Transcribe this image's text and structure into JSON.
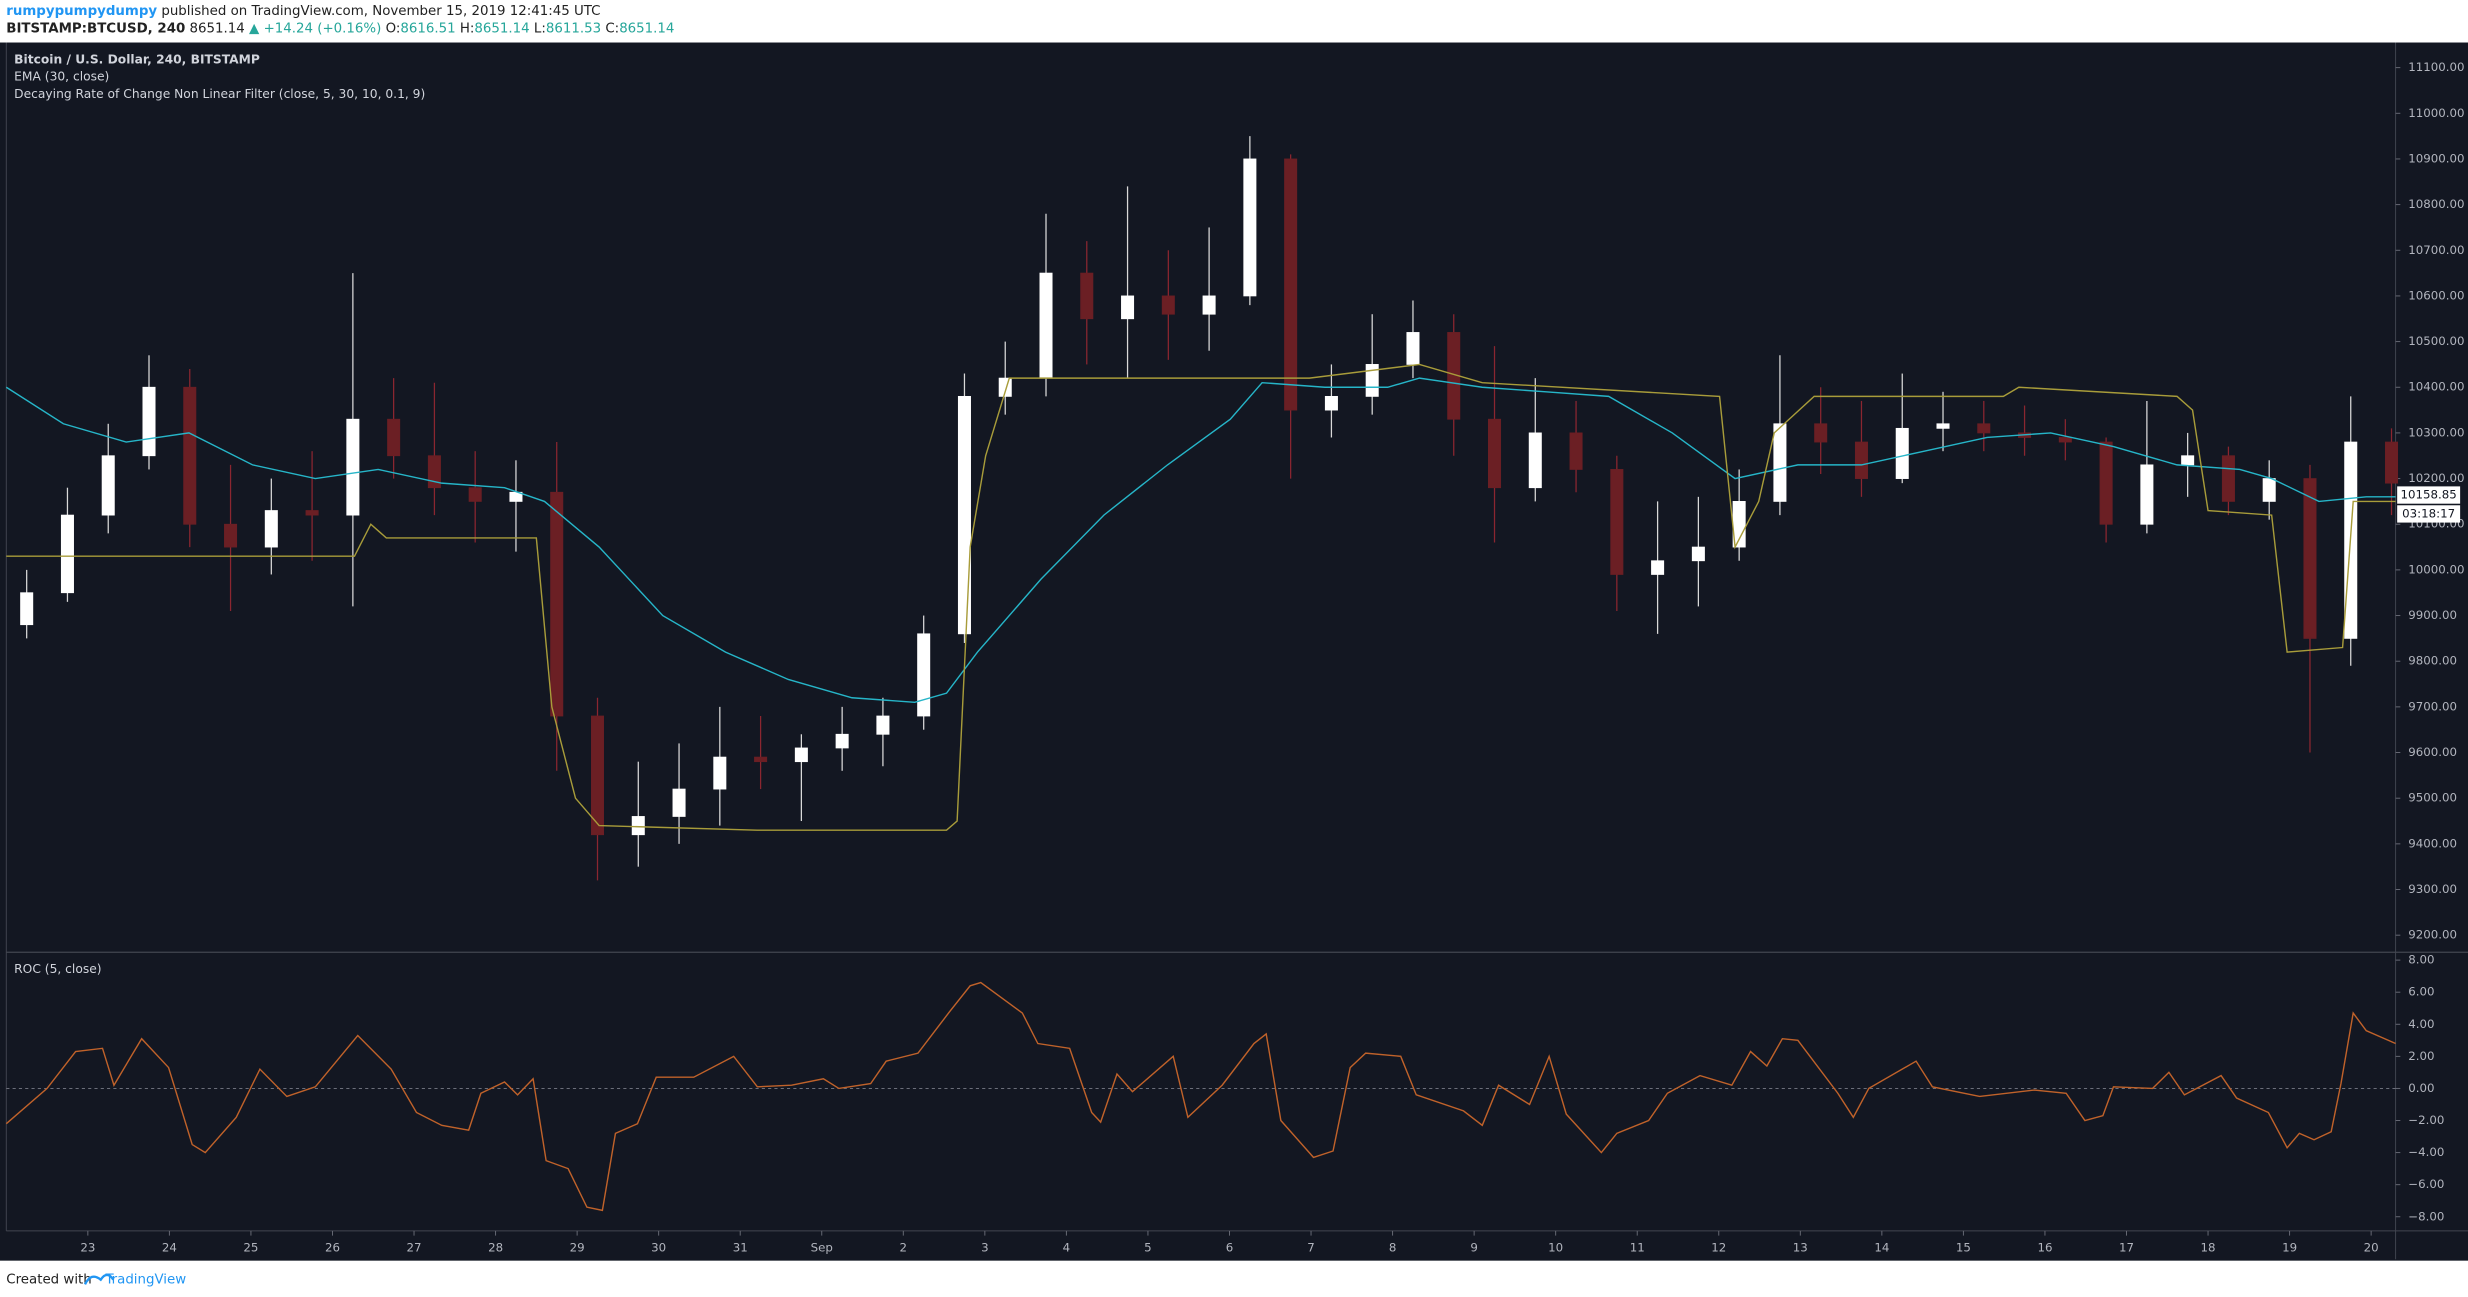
{
  "header": {
    "author": "rumpypumpydumpy",
    "published": "published on TradingView.com, November 15, 2019 12:41:45 UTC",
    "symbol": "BITSTAMP:BTCUSD, 240",
    "price": "8651.14",
    "change": "▲ +14.24 (+0.16%)",
    "o_label": "O:",
    "o": "8616.51",
    "h_label": "H:",
    "h": "8651.14",
    "l_label": "L:",
    "l": "8611.53",
    "c_label": "C:",
    "c": "8651.14"
  },
  "footer": {
    "created": "Created with",
    "brand": "TradingView"
  },
  "chart_data": [
    {
      "type": "candlestick",
      "title": "Bitcoin / U.S. Dollar, 240, BITSTAMP",
      "x": [
        0.25,
        0.75,
        1.25,
        1.75,
        2.25,
        2.75,
        3.25,
        3.75,
        4.25,
        4.75,
        5.25,
        5.75,
        6.25,
        6.75,
        7.25,
        7.75,
        8.25,
        8.75,
        9.25,
        9.75,
        10.25,
        10.75,
        11.25,
        11.75,
        12.25,
        12.75,
        13.25,
        13.75,
        14.25,
        14.75,
        15.25,
        15.75,
        16.25,
        16.75,
        17.25,
        17.75,
        18.25,
        18.75,
        19.25,
        19.75,
        20.25,
        20.75,
        21.25,
        21.75,
        22.25,
        22.75,
        23.25,
        23.75,
        24.25,
        24.75,
        25.25,
        25.75,
        26.25,
        26.75,
        27.25,
        27.75,
        28.25,
        28.75,
        29.25
      ],
      "open": [
        9880,
        9950,
        10120,
        10250,
        10400,
        10100,
        10050,
        10130,
        10120,
        10330,
        10250,
        10180,
        10150,
        10170,
        9680,
        9420,
        9460,
        9520,
        9590,
        9580,
        9610,
        9640,
        9680,
        9860,
        10380,
        10420,
        10650,
        10550,
        10600,
        10560,
        10600,
        10900,
        10350,
        10380,
        10450,
        10520,
        10330,
        10180,
        10300,
        10220,
        9990,
        10020,
        10050,
        10150,
        10320,
        10280,
        10200,
        10310,
        10320,
        10300,
        10290,
        10280,
        10100,
        10230,
        10250,
        10150,
        10200,
        9850,
        10280
      ],
      "high": [
        10000,
        10180,
        10320,
        10470,
        10440,
        10230,
        10200,
        10260,
        10650,
        10420,
        10410,
        10260,
        10240,
        10280,
        9720,
        9580,
        9620,
        9700,
        9680,
        9640,
        9700,
        9720,
        9900,
        10430,
        10500,
        10780,
        10720,
        10840,
        10700,
        10750,
        10950,
        10910,
        10450,
        10560,
        10590,
        10560,
        10490,
        10420,
        10370,
        10250,
        10150,
        10160,
        10220,
        10470,
        10400,
        10370,
        10430,
        10390,
        10370,
        10360,
        10330,
        10290,
        10370,
        10300,
        10270,
        10240,
        10230,
        10380,
        10310
      ],
      "low": [
        9850,
        9930,
        10080,
        10220,
        10050,
        9910,
        9990,
        10020,
        9920,
        10200,
        10120,
        10060,
        10040,
        9560,
        9320,
        9350,
        9400,
        9440,
        9520,
        9450,
        9560,
        9570,
        9650,
        9840,
        10340,
        10380,
        10450,
        10420,
        10460,
        10480,
        10580,
        10200,
        10290,
        10340,
        10420,
        10250,
        10060,
        10150,
        10170,
        9910,
        9860,
        9920,
        10020,
        10120,
        10210,
        10160,
        10190,
        10260,
        10260,
        10250,
        10240,
        10060,
        10080,
        10160,
        10120,
        10110,
        9600,
        9790,
        10120
      ],
      "close": [
        9950,
        10120,
        10250,
        10400,
        10100,
        10050,
        10130,
        10120,
        10330,
        10250,
        10180,
        10150,
        10170,
        9680,
        9420,
        9460,
        9520,
        9590,
        9580,
        9610,
        9640,
        9680,
        9860,
        10380,
        10420,
        10650,
        10550,
        10600,
        10560,
        10600,
        10900,
        10350,
        10380,
        10450,
        10520,
        10330,
        10180,
        10300,
        10220,
        9990,
        10020,
        10050,
        10150,
        10320,
        10280,
        10200,
        10310,
        10320,
        10300,
        10290,
        10280,
        10100,
        10230,
        10250,
        10150,
        10200,
        9850,
        10280,
        10190
      ],
      "up_color": "#ffffff",
      "down_color": "#6b1f24",
      "series": [
        {
          "name": "EMA (30, close)",
          "color": "#26b5c8",
          "x": [
            0,
            0.7,
            1.47,
            2.24,
            3.02,
            3.79,
            4.56,
            5.34,
            6.11,
            6.6,
            7.27,
            8.05,
            8.82,
            9.59,
            10.37,
            11.14,
            11.53,
            11.91,
            12.69,
            13.46,
            14.24,
            15.01,
            15.4,
            16.17,
            16.94,
            17.33,
            18.1,
            18.88,
            19.65,
            20.43,
            21.2,
            21.97,
            22.75,
            23.52,
            24.29,
            25.07,
            25.84,
            26.62,
            27.39,
            27.78,
            28.36,
            28.94,
            29.3
          ],
          "values": [
            10400,
            10320,
            10280,
            10300,
            10230,
            10200,
            10220,
            10190,
            10180,
            10150,
            10050,
            9900,
            9820,
            9760,
            9720,
            9710,
            9730,
            9820,
            9980,
            10120,
            10230,
            10330,
            10410,
            10400,
            10400,
            10420,
            10400,
            10390,
            10380,
            10300,
            10200,
            10230,
            10230,
            10260,
            10290,
            10300,
            10270,
            10230,
            10220,
            10200,
            10150,
            10160,
            10160
          ]
        },
        {
          "name": "Decaying Rate of Change Non Linear Filter (close, 5, 30, 10, 0.1, 9)",
          "color": "#a89c3a",
          "x": [
            0,
            4.27,
            4.47,
            4.66,
            6.5,
            6.69,
            6.98,
            7.27,
            9.21,
            11.53,
            11.66,
            11.82,
            12.01,
            12.3,
            15.4,
            15.98,
            17.33,
            18.1,
            21.01,
            21.2,
            21.49,
            21.68,
            22.17,
            24.49,
            24.68,
            26.62,
            26.81,
            27.0,
            27.78,
            27.97,
            28.65,
            28.78,
            29.3
          ],
          "values": [
            10030,
            10030,
            10100,
            10070,
            10070,
            9700,
            9500,
            9440,
            9430,
            9430,
            9450,
            10050,
            10250,
            10420,
            10420,
            10420,
            10450,
            10410,
            10380,
            10050,
            10150,
            10300,
            10380,
            10380,
            10400,
            10380,
            10350,
            10130,
            10120,
            9820,
            9830,
            10150,
            10150
          ]
        }
      ],
      "xlim": [
        0,
        29.3
      ],
      "ylim": [
        9166,
        11155
      ],
      "yticks": [
        {
          "value": 9200,
          "label": "9200.00"
        },
        {
          "value": 9300,
          "label": "9300.00"
        },
        {
          "value": 9400,
          "label": "9400.00"
        },
        {
          "value": 9500,
          "label": "9500.00"
        },
        {
          "value": 9600,
          "label": "9600.00"
        },
        {
          "value": 9700,
          "label": "9700.00"
        },
        {
          "value": 9800,
          "label": "9800.00"
        },
        {
          "value": 9900,
          "label": "9900.00"
        },
        {
          "value": 10000,
          "label": "10000.00"
        },
        {
          "value": 10100,
          "label": "10100.00"
        },
        {
          "value": 10200,
          "label": "10200.00"
        },
        {
          "value": 10300,
          "label": "10300.00"
        },
        {
          "value": 10400,
          "label": "10400.00"
        },
        {
          "value": 10500,
          "label": "10500.00"
        },
        {
          "value": 10600,
          "label": "10600.00"
        },
        {
          "value": 10700,
          "label": "10700.00"
        },
        {
          "value": 10800,
          "label": "10800.00"
        },
        {
          "value": 10900,
          "label": "10900.00"
        },
        {
          "value": 11000,
          "label": "11000.00"
        },
        {
          "value": 11100,
          "label": "11100.00"
        }
      ],
      "last_price_label": "10158.85",
      "countdown": "03:18:17"
    },
    {
      "type": "line",
      "title": "ROC (5, close)",
      "series": [
        {
          "color": "#c0622a",
          "x": [
            0,
            0.5,
            0.85,
            1.18,
            1.32,
            1.66,
            1.99,
            2.28,
            2.44,
            2.82,
            3.11,
            3.44,
            3.79,
            4.31,
            4.72,
            5.03,
            5.34,
            5.67,
            5.82,
            6.11,
            6.27,
            6.46,
            6.62,
            6.89,
            7.12,
            7.31,
            7.47,
            7.74,
            7.97,
            8.43,
            8.92,
            9.21,
            9.63,
            10.02,
            10.21,
            10.6,
            10.79,
            11.18,
            11.57,
            11.82,
            11.95,
            12.46,
            12.65,
            13.04,
            13.31,
            13.42,
            13.62,
            13.81,
            14.31,
            14.49,
            14.91,
            15.3,
            15.45,
            15.63,
            16.03,
            16.27,
            16.48,
            16.67,
            17.1,
            17.29,
            17.87,
            18.1,
            18.3,
            18.68,
            18.92,
            19.13,
            19.56,
            19.75,
            20.14,
            20.37,
            20.77,
            21.16,
            21.39,
            21.59,
            21.78,
            21.97,
            22.46,
            22.65,
            22.84,
            23.42,
            23.62,
            24.2,
            24.87,
            25.26,
            25.49,
            25.71,
            25.84,
            26.32,
            26.52,
            26.71,
            27.16,
            27.35,
            27.74,
            27.97,
            28.12,
            28.3,
            28.51,
            28.63,
            28.78,
            28.94,
            29.3
          ],
          "values": [
            -2.2,
            0,
            2.3,
            2.5,
            0.2,
            3.1,
            1.3,
            -3.5,
            -4.0,
            -1.8,
            1.2,
            -0.5,
            0.1,
            3.3,
            1.2,
            -1.5,
            -2.3,
            -2.6,
            -0.3,
            0.4,
            -0.4,
            0.6,
            -4.5,
            -5,
            -7.4,
            -7.6,
            -2.8,
            -2.2,
            0.7,
            0.7,
            2.0,
            0.1,
            0.2,
            0.6,
            0,
            0.3,
            1.7,
            2.2,
            4.8,
            6.4,
            6.6,
            4.7,
            2.8,
            2.5,
            -1.5,
            -2.1,
            0.9,
            -0.2,
            2.0,
            -1.8,
            0.2,
            2.8,
            3.4,
            -2,
            -4.3,
            -3.9,
            1.3,
            2.2,
            2.0,
            -0.4,
            -1.4,
            -2.3,
            0.2,
            -1.0,
            2.0,
            -1.6,
            -4.0,
            -2.8,
            -2.0,
            -0.3,
            0.8,
            0.2,
            2.3,
            1.4,
            3.1,
            3.0,
            -0.3,
            -1.8,
            0,
            1.7,
            0.1,
            -0.5,
            -0.1,
            -0.3,
            -2.0,
            -1.7,
            0.1,
            0,
            1.0,
            -0.4,
            0.8,
            -0.6,
            -1.5,
            -3.7,
            -2.8,
            -3.2,
            -2.7,
            0.3,
            4.7,
            3.6,
            2.8
          ]
        }
      ],
      "hline": 0,
      "xlim": [
        0,
        29.3
      ],
      "ylim": [
        -8.88,
        8.39
      ],
      "yticks": [
        {
          "value": -8,
          "label": "−8.00"
        },
        {
          "value": -6,
          "label": "−6.00"
        },
        {
          "value": -4,
          "label": "−4.00"
        },
        {
          "value": -2,
          "label": "−2.00"
        },
        {
          "value": 0,
          "label": "0.00"
        },
        {
          "value": 2,
          "label": "2.00"
        },
        {
          "value": 4,
          "label": "4.00"
        },
        {
          "value": 6,
          "label": "6.00"
        },
        {
          "value": 8,
          "label": "8.00"
        }
      ],
      "xticks": [
        {
          "value": 1,
          "label": "23"
        },
        {
          "value": 2,
          "label": "24"
        },
        {
          "value": 3,
          "label": "25"
        },
        {
          "value": 4,
          "label": "26"
        },
        {
          "value": 5,
          "label": "27"
        },
        {
          "value": 6,
          "label": "28"
        },
        {
          "value": 7,
          "label": "29"
        },
        {
          "value": 8,
          "label": "30"
        },
        {
          "value": 9,
          "label": "31"
        },
        {
          "value": 10,
          "label": "Sep"
        },
        {
          "value": 11,
          "label": "2"
        },
        {
          "value": 12,
          "label": "3"
        },
        {
          "value": 13,
          "label": "4"
        },
        {
          "value": 14,
          "label": "5"
        },
        {
          "value": 15,
          "label": "6"
        },
        {
          "value": 16,
          "label": "7"
        },
        {
          "value": 17,
          "label": "8"
        },
        {
          "value": 18,
          "label": "9"
        },
        {
          "value": 19,
          "label": "10"
        },
        {
          "value": 20,
          "label": "11"
        },
        {
          "value": 21,
          "label": "12"
        },
        {
          "value": 22,
          "label": "13"
        },
        {
          "value": 23,
          "label": "14"
        },
        {
          "value": 24,
          "label": "15"
        },
        {
          "value": 25,
          "label": "16"
        },
        {
          "value": 26,
          "label": "17"
        },
        {
          "value": 27,
          "label": "18"
        },
        {
          "value": 28,
          "label": "19"
        },
        {
          "value": 29,
          "label": "20"
        }
      ]
    }
  ]
}
